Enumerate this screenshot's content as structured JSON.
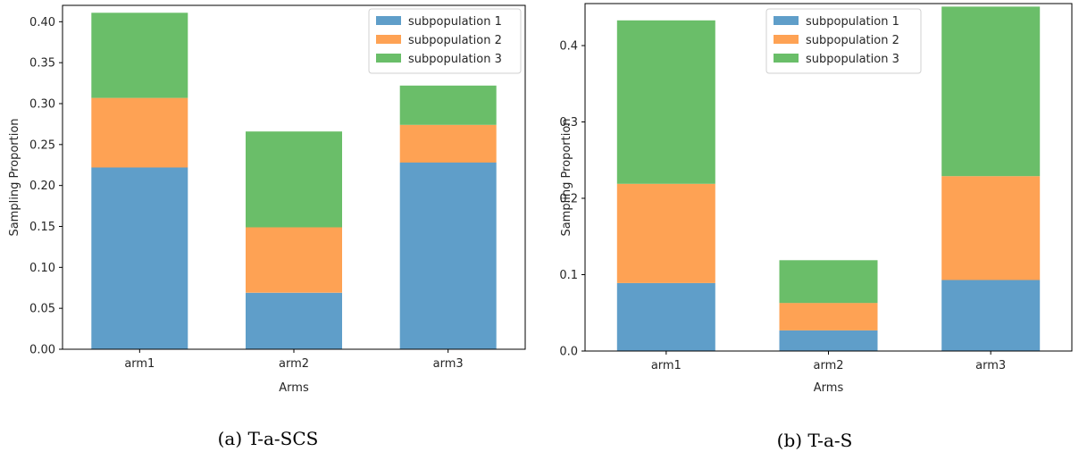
{
  "chart_data": [
    {
      "type": "bar",
      "stacked": true,
      "caption": "(a) T-a-SCS",
      "categories": [
        "arm1",
        "arm2",
        "arm3"
      ],
      "xlabel": "Arms",
      "ylabel": "Sampling Proportion",
      "ylim": [
        0,
        0.42
      ],
      "yticks": [
        0.0,
        0.05,
        0.1,
        0.15,
        0.2,
        0.25,
        0.3,
        0.35,
        0.4
      ],
      "ytick_labels": [
        "0.00",
        "0.05",
        "0.10",
        "0.15",
        "0.20",
        "0.25",
        "0.30",
        "0.35",
        "0.40"
      ],
      "legend_position": "top-right",
      "series": [
        {
          "name": "subpopulation 1",
          "color": "#5f9ec9",
          "values": [
            0.222,
            0.069,
            0.228
          ]
        },
        {
          "name": "subpopulation 2",
          "color": "#fea254",
          "values": [
            0.085,
            0.08,
            0.046
          ]
        },
        {
          "name": "subpopulation 3",
          "color": "#6abe69",
          "values": [
            0.104,
            0.117,
            0.048
          ]
        }
      ]
    },
    {
      "type": "bar",
      "stacked": true,
      "caption": "(b) T-a-S",
      "categories": [
        "arm1",
        "arm2",
        "arm3"
      ],
      "xlabel": "Arms",
      "ylabel": "Sampling Proportion",
      "ylim": [
        0,
        0.455
      ],
      "yticks": [
        0.0,
        0.1,
        0.2,
        0.3,
        0.4
      ],
      "ytick_labels": [
        "0.0",
        "0.1",
        "0.2",
        "0.3",
        "0.4"
      ],
      "legend_position": "top-center",
      "series": [
        {
          "name": "subpopulation 1",
          "color": "#5f9ec9",
          "values": [
            0.089,
            0.027,
            0.093
          ]
        },
        {
          "name": "subpopulation 2",
          "color": "#fea254",
          "values": [
            0.13,
            0.036,
            0.136
          ]
        },
        {
          "name": "subpopulation 3",
          "color": "#6abe69",
          "values": [
            0.214,
            0.056,
            0.222
          ]
        }
      ]
    }
  ]
}
